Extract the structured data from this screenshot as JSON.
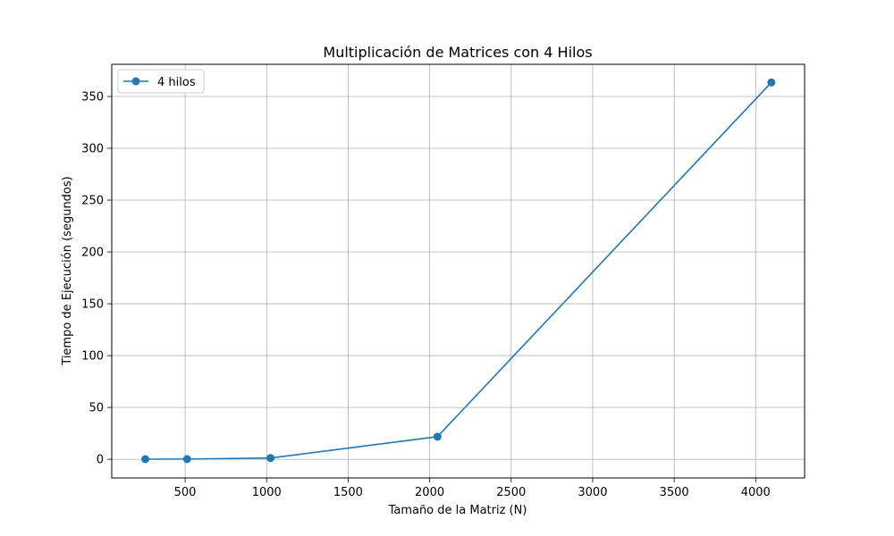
{
  "chart_data": {
    "type": "line",
    "title": "Multiplicación de Matrices con 4 Hilos",
    "xlabel": "Tamaño de la Matriz (N)",
    "ylabel": "Tiempo de Ejecución (segundos)",
    "xlim": [
      50,
      4300
    ],
    "ylim": [
      -18,
      381
    ],
    "xticks": [
      500,
      1000,
      1500,
      2000,
      2500,
      3000,
      3500,
      4000
    ],
    "yticks": [
      0,
      50,
      100,
      150,
      200,
      250,
      300,
      350
    ],
    "grid": true,
    "legend_position": "upper left",
    "series": [
      {
        "name": "4 hilos",
        "color": "#1f77b4",
        "marker": "circle",
        "x": [
          256,
          512,
          1024,
          2048,
          4096
        ],
        "y": [
          0.1,
          0.2,
          1.2,
          21.8,
          363.5
        ]
      }
    ]
  }
}
